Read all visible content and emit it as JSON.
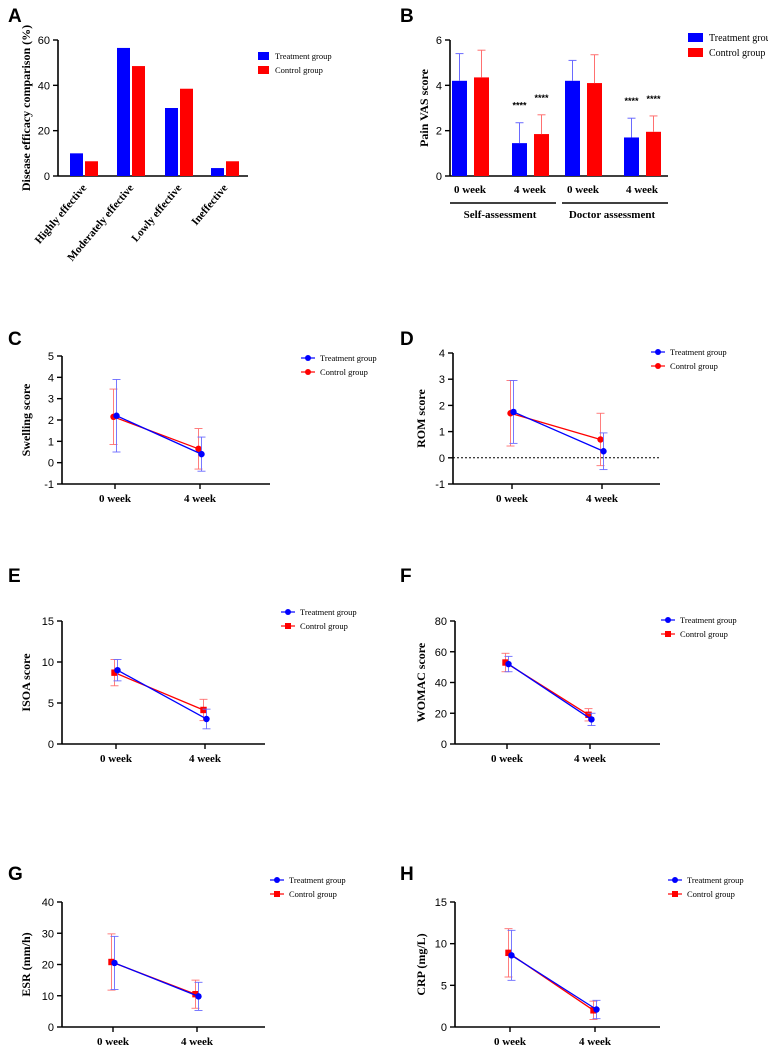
{
  "colors": {
    "treatment": "#0000ff",
    "control": "#ff0000",
    "treatment_err": "#6a6aff",
    "control_err": "#ff7070"
  },
  "chart_data": [
    {
      "id": "A",
      "type": "bar",
      "panel_label": "A",
      "title": "",
      "ylabel": "Disease efficacy comparison (%)",
      "ylim": [
        0,
        60
      ],
      "yticks": [
        "0",
        "20",
        "40",
        "60"
      ],
      "categories": [
        "Highly effective",
        "Moderately effective",
        "Lowly effective",
        "Ineffective"
      ],
      "series": [
        {
          "name": "Treatment group",
          "values": [
            10,
            56.5,
            30,
            3.5
          ]
        },
        {
          "name": "Control group",
          "values": [
            6.5,
            48.5,
            38.5,
            6.5
          ]
        }
      ],
      "legend": [
        "Treatment group",
        "Control group"
      ]
    },
    {
      "id": "B",
      "type": "bar",
      "panel_label": "B",
      "ylabel": "Pain VAS score",
      "ylim": [
        0,
        6
      ],
      "yticks": [
        "0",
        "2",
        "4",
        "6"
      ],
      "categories": [
        "0 week",
        "4 week",
        "0 week",
        "4 week"
      ],
      "groups": [
        "Self-assessment",
        "Doctor assessment"
      ],
      "series": [
        {
          "name": "Treatment group",
          "values": [
            4.2,
            1.45,
            4.2,
            1.7
          ],
          "errors": [
            1.2,
            0.9,
            0.9,
            0.85
          ]
        },
        {
          "name": "Control group",
          "values": [
            4.35,
            1.85,
            4.1,
            1.95
          ],
          "errors": [
            1.2,
            0.85,
            1.25,
            0.7
          ]
        }
      ],
      "annotations": [
        "****",
        "****",
        "****",
        "****"
      ],
      "legend": [
        "Treatment group",
        "Control group"
      ]
    },
    {
      "id": "C",
      "type": "line",
      "panel_label": "C",
      "ylabel": "Swelling score",
      "ylim": [
        -1,
        5
      ],
      "yticks": [
        "-1",
        "0",
        "1",
        "2",
        "3",
        "4",
        "5"
      ],
      "x": [
        "0 week",
        "4 week"
      ],
      "series": [
        {
          "name": "Treatment group",
          "values": [
            2.2,
            0.4
          ],
          "errors": [
            1.7,
            0.8
          ]
        },
        {
          "name": "Control group",
          "values": [
            2.15,
            0.65
          ],
          "errors": [
            1.3,
            0.95
          ]
        }
      ],
      "legend": [
        "Treatment group",
        "Control group"
      ]
    },
    {
      "id": "D",
      "type": "line",
      "panel_label": "D",
      "ylabel": "ROM  score",
      "ylim": [
        -1,
        4
      ],
      "yticks": [
        "-1",
        "0",
        "1",
        "2",
        "3",
        "4"
      ],
      "x": [
        "0 week",
        "4 week"
      ],
      "series": [
        {
          "name": "Treatment group",
          "values": [
            1.75,
            0.25
          ],
          "errors": [
            1.2,
            0.7
          ]
        },
        {
          "name": "Control group",
          "values": [
            1.7,
            0.7
          ],
          "errors": [
            1.25,
            1.0
          ]
        }
      ],
      "reference_line": 0,
      "legend": [
        "Treatment group",
        "Control group"
      ]
    },
    {
      "id": "E",
      "type": "line",
      "panel_label": "E",
      "ylabel": "ISOA score",
      "ylim": [
        0,
        15
      ],
      "yticks": [
        "0",
        "5",
        "10",
        "15"
      ],
      "x": [
        "0 week",
        "4 week"
      ],
      "series": [
        {
          "name": "Treatment group",
          "values": [
            9.0,
            3.05
          ],
          "errors": [
            1.3,
            1.2
          ]
        },
        {
          "name": "Control group",
          "values": [
            8.7,
            4.15
          ],
          "errors": [
            1.6,
            1.3
          ]
        }
      ],
      "legend": [
        "Treatment group",
        "Control group"
      ]
    },
    {
      "id": "F",
      "type": "line",
      "panel_label": "F",
      "ylabel": "WOMAC score",
      "ylim": [
        0,
        80
      ],
      "yticks": [
        "0",
        "20",
        "40",
        "60",
        "80"
      ],
      "x": [
        "0 week",
        "4 week"
      ],
      "series": [
        {
          "name": "Treatment group",
          "values": [
            52,
            16
          ],
          "errors": [
            5,
            4
          ]
        },
        {
          "name": "Control group",
          "values": [
            53,
            19
          ],
          "errors": [
            6,
            4
          ]
        }
      ],
      "legend": [
        "Treatment group",
        "Control group"
      ]
    },
    {
      "id": "G",
      "type": "line",
      "panel_label": "G",
      "ylabel": "ESR (mm/h)",
      "ylim": [
        0,
        40
      ],
      "yticks": [
        "0",
        "10",
        "20",
        "30",
        "40"
      ],
      "x": [
        "0 week",
        "4 week"
      ],
      "series": [
        {
          "name": "Treatment group",
          "values": [
            20.5,
            9.8
          ],
          "errors": [
            8.5,
            4.5
          ]
        },
        {
          "name": "Control group",
          "values": [
            20.8,
            10.5
          ],
          "errors": [
            9,
            4.5
          ]
        }
      ],
      "legend": [
        "Treatment group",
        "Control group"
      ]
    },
    {
      "id": "H",
      "type": "line",
      "panel_label": "H",
      "ylabel": "CRP (mg/L)",
      "ylim": [
        0,
        15
      ],
      "yticks": [
        "0",
        "5",
        "10",
        "15"
      ],
      "x": [
        "0 week",
        "4 week"
      ],
      "series": [
        {
          "name": "Treatment group",
          "values": [
            8.6,
            2.1
          ],
          "errors": [
            3.0,
            1.1
          ]
        },
        {
          "name": "Control group",
          "values": [
            8.9,
            2.0
          ],
          "errors": [
            2.9,
            1.1
          ]
        }
      ],
      "legend": [
        "Treatment group",
        "Control group"
      ]
    }
  ]
}
